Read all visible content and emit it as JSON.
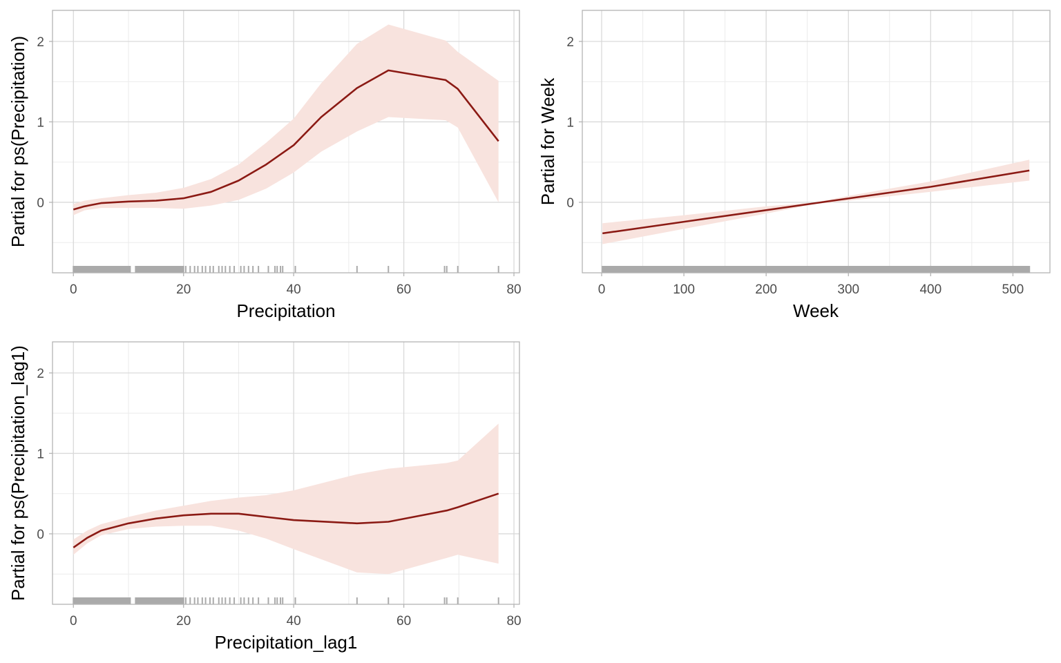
{
  "figure": {
    "colors": {
      "line": "#8b1a14",
      "ribbon": "#f8e3de",
      "rug": "#aaaaaa"
    }
  },
  "chart_data": [
    {
      "type": "line",
      "panel": "top-left",
      "title": "",
      "xlabel": "Precipitation",
      "ylabel": "Partial for ps(Precipitation)",
      "xlim": [
        -3.8,
        81.0
      ],
      "ylim": [
        -0.876,
        2.386
      ],
      "xticks": [
        0,
        20,
        40,
        60,
        80
      ],
      "xtick_labels": [
        "0",
        "20",
        "40",
        "60",
        "80"
      ],
      "yticks": [
        0,
        1,
        2
      ],
      "ytick_labels": [
        "0",
        "1",
        "2"
      ],
      "grid": true,
      "series": [
        {
          "name": "partial effect",
          "x": [
            0,
            2,
            5,
            10,
            15,
            20,
            25,
            30,
            35,
            40,
            45,
            51.5,
            57.2,
            67.6,
            69.8,
            77.2
          ],
          "y": [
            -0.09,
            -0.05,
            -0.01,
            0.01,
            0.02,
            0.05,
            0.13,
            0.27,
            0.47,
            0.71,
            1.06,
            1.42,
            1.64,
            1.52,
            1.41,
            0.76
          ],
          "lower": [
            -0.16,
            -0.1,
            -0.07,
            -0.07,
            -0.07,
            -0.08,
            -0.04,
            0.03,
            0.17,
            0.37,
            0.63,
            0.88,
            1.06,
            1.02,
            0.93,
            0.0
          ],
          "upper": [
            -0.02,
            0.02,
            0.05,
            0.09,
            0.12,
            0.18,
            0.29,
            0.47,
            0.74,
            1.04,
            1.48,
            1.97,
            2.21,
            2.01,
            1.87,
            1.51
          ]
        }
      ],
      "rug": {
        "dense_ranges": [
          [
            0,
            10.3
          ],
          [
            11.3,
            20.0
          ]
        ],
        "ticks": [
          20.4,
          21.2,
          22.0,
          22.6,
          23.4,
          24.0,
          24.8,
          25.4,
          26.4,
          27.0,
          27.6,
          28.4,
          29.2,
          30.4,
          31.0,
          31.8,
          32.6,
          33.6,
          35.4,
          36.6,
          37.0,
          37.6,
          38.0,
          40.3,
          51.5,
          57.2,
          67.4,
          67.8,
          69.8,
          77.2
        ]
      }
    },
    {
      "type": "line",
      "panel": "top-right",
      "title": "",
      "xlabel": "Week",
      "ylabel": "Partial for Week",
      "xlim": [
        -23.5,
        545
      ],
      "ylim": [
        -0.876,
        2.386
      ],
      "xticks": [
        0,
        100,
        200,
        300,
        400,
        500
      ],
      "xtick_labels": [
        "0",
        "100",
        "200",
        "300",
        "400",
        "500"
      ],
      "yticks": [
        0,
        1,
        2
      ],
      "ytick_labels": [
        "0",
        "1",
        "2"
      ],
      "grid": true,
      "series": [
        {
          "name": "partial effect",
          "x": [
            1,
            100,
            200,
            260,
            300,
            400,
            520
          ],
          "y": [
            -0.386,
            -0.242,
            -0.097,
            -0.01,
            0.048,
            0.193,
            0.395
          ],
          "lower": [
            -0.52,
            -0.33,
            -0.14,
            -0.02,
            0.02,
            0.13,
            0.27
          ],
          "upper": [
            -0.26,
            -0.16,
            -0.05,
            0.0,
            0.08,
            0.26,
            0.53
          ]
        }
      ],
      "rug": {
        "dense_ranges": [
          [
            1,
            520
          ]
        ],
        "ticks": []
      }
    },
    {
      "type": "line",
      "panel": "bottom-left",
      "title": "",
      "xlabel": "Precipitation_lag1",
      "ylabel": "Partial for ps(Precipitation_lag1)",
      "xlim": [
        -3.8,
        81.0
      ],
      "ylim": [
        -0.876,
        2.386
      ],
      "xticks": [
        0,
        20,
        40,
        60,
        80
      ],
      "xtick_labels": [
        "0",
        "20",
        "40",
        "60",
        "80"
      ],
      "yticks": [
        0,
        1,
        2
      ],
      "ytick_labels": [
        "0",
        "1",
        "2"
      ],
      "grid": true,
      "series": [
        {
          "name": "partial effect",
          "x": [
            0,
            2.5,
            5,
            10,
            15,
            20,
            25,
            30,
            35,
            40,
            51.5,
            57.2,
            67.8,
            69.8,
            77.2
          ],
          "y": [
            -0.17,
            -0.05,
            0.04,
            0.13,
            0.19,
            0.23,
            0.25,
            0.25,
            0.21,
            0.17,
            0.13,
            0.15,
            0.29,
            0.33,
            0.5
          ],
          "lower": [
            -0.26,
            -0.12,
            -0.02,
            0.06,
            0.09,
            0.1,
            0.1,
            0.04,
            -0.06,
            -0.19,
            -0.48,
            -0.5,
            -0.3,
            -0.26,
            -0.37
          ],
          "upper": [
            -0.07,
            0.04,
            0.12,
            0.21,
            0.29,
            0.35,
            0.41,
            0.45,
            0.48,
            0.54,
            0.74,
            0.81,
            0.88,
            0.91,
            1.37
          ]
        }
      ],
      "rug": {
        "dense_ranges": [
          [
            0,
            10.3
          ],
          [
            11.3,
            20.0
          ]
        ],
        "ticks": [
          20.4,
          21.2,
          22.0,
          22.6,
          23.4,
          24.0,
          24.8,
          25.4,
          26.4,
          27.0,
          27.6,
          28.4,
          29.2,
          30.4,
          31.0,
          31.8,
          32.6,
          33.6,
          35.4,
          36.6,
          37.0,
          37.6,
          38.0,
          40.3,
          51.5,
          57.2,
          67.4,
          67.8,
          69.8,
          77.2
        ]
      }
    }
  ]
}
